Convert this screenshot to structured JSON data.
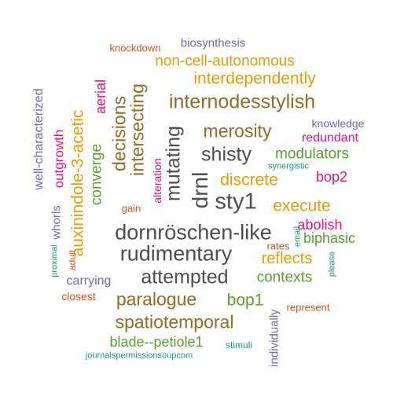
{
  "colors": {
    "gray": "#4d4d4d",
    "brown": "#966a24",
    "gold": "#e39c07",
    "green": "#5aa02e",
    "pink": "#e2137c",
    "purple": "#6e6aa8",
    "orange": "#d5541b",
    "teal": "#1b9a76"
  },
  "words": [
    {
      "text": "dornröschen-like",
      "color": "gray"
    },
    {
      "text": "rudimentary",
      "color": "gray"
    },
    {
      "text": "sty1",
      "color": "gray"
    },
    {
      "text": "shisty",
      "color": "gray"
    },
    {
      "text": "drnl",
      "color": "gray"
    },
    {
      "text": "mutating",
      "color": "gray"
    },
    {
      "text": "attempted",
      "color": "gray"
    },
    {
      "text": "internodesstylish",
      "color": "brown"
    },
    {
      "text": "spatiotemporal",
      "color": "brown"
    },
    {
      "text": "paralogue",
      "color": "brown"
    },
    {
      "text": "merosity",
      "color": "brown"
    },
    {
      "text": "decisions",
      "color": "brown"
    },
    {
      "text": "intersecting",
      "color": "brown"
    },
    {
      "text": "interdependently",
      "color": "gold"
    },
    {
      "text": "non-cell-autonomous",
      "color": "gold"
    },
    {
      "text": "discrete",
      "color": "gold"
    },
    {
      "text": "execute",
      "color": "gold"
    },
    {
      "text": "reflects",
      "color": "gold"
    },
    {
      "text": "auxinindole-3-acetic",
      "color": "gold"
    },
    {
      "text": "modulators",
      "color": "green"
    },
    {
      "text": "contexts",
      "color": "green"
    },
    {
      "text": "bop1",
      "color": "green"
    },
    {
      "text": "blade--petiole1",
      "color": "green"
    },
    {
      "text": "biphasic",
      "color": "green"
    },
    {
      "text": "converge",
      "color": "green"
    },
    {
      "text": "abolish",
      "color": "pink"
    },
    {
      "text": "bop2",
      "color": "pink"
    },
    {
      "text": "redundant",
      "color": "pink"
    },
    {
      "text": "aerial",
      "color": "pink"
    },
    {
      "text": "outgrowth",
      "color": "pink"
    },
    {
      "text": "alteration",
      "color": "pink"
    },
    {
      "text": "biosynthesis",
      "color": "purple"
    },
    {
      "text": "knowledge",
      "color": "purple"
    },
    {
      "text": "well-characterized",
      "color": "purple"
    },
    {
      "text": "whorls",
      "color": "purple"
    },
    {
      "text": "carrying",
      "color": "purple"
    },
    {
      "text": "individually",
      "color": "purple"
    },
    {
      "text": "knockdown",
      "color": "orange"
    },
    {
      "text": "closest",
      "color": "orange"
    },
    {
      "text": "represent",
      "color": "orange"
    },
    {
      "text": "gain",
      "color": "orange"
    },
    {
      "text": "rates",
      "color": "orange"
    },
    {
      "text": "adult",
      "color": "orange"
    },
    {
      "text": "synergistic",
      "color": "teal"
    },
    {
      "text": "email",
      "color": "teal"
    },
    {
      "text": "please",
      "color": "teal"
    },
    {
      "text": "proximal",
      "color": "teal"
    },
    {
      "text": "stimuli",
      "color": "teal"
    },
    {
      "text": "journalspermissionsoupcom",
      "color": "teal"
    }
  ]
}
